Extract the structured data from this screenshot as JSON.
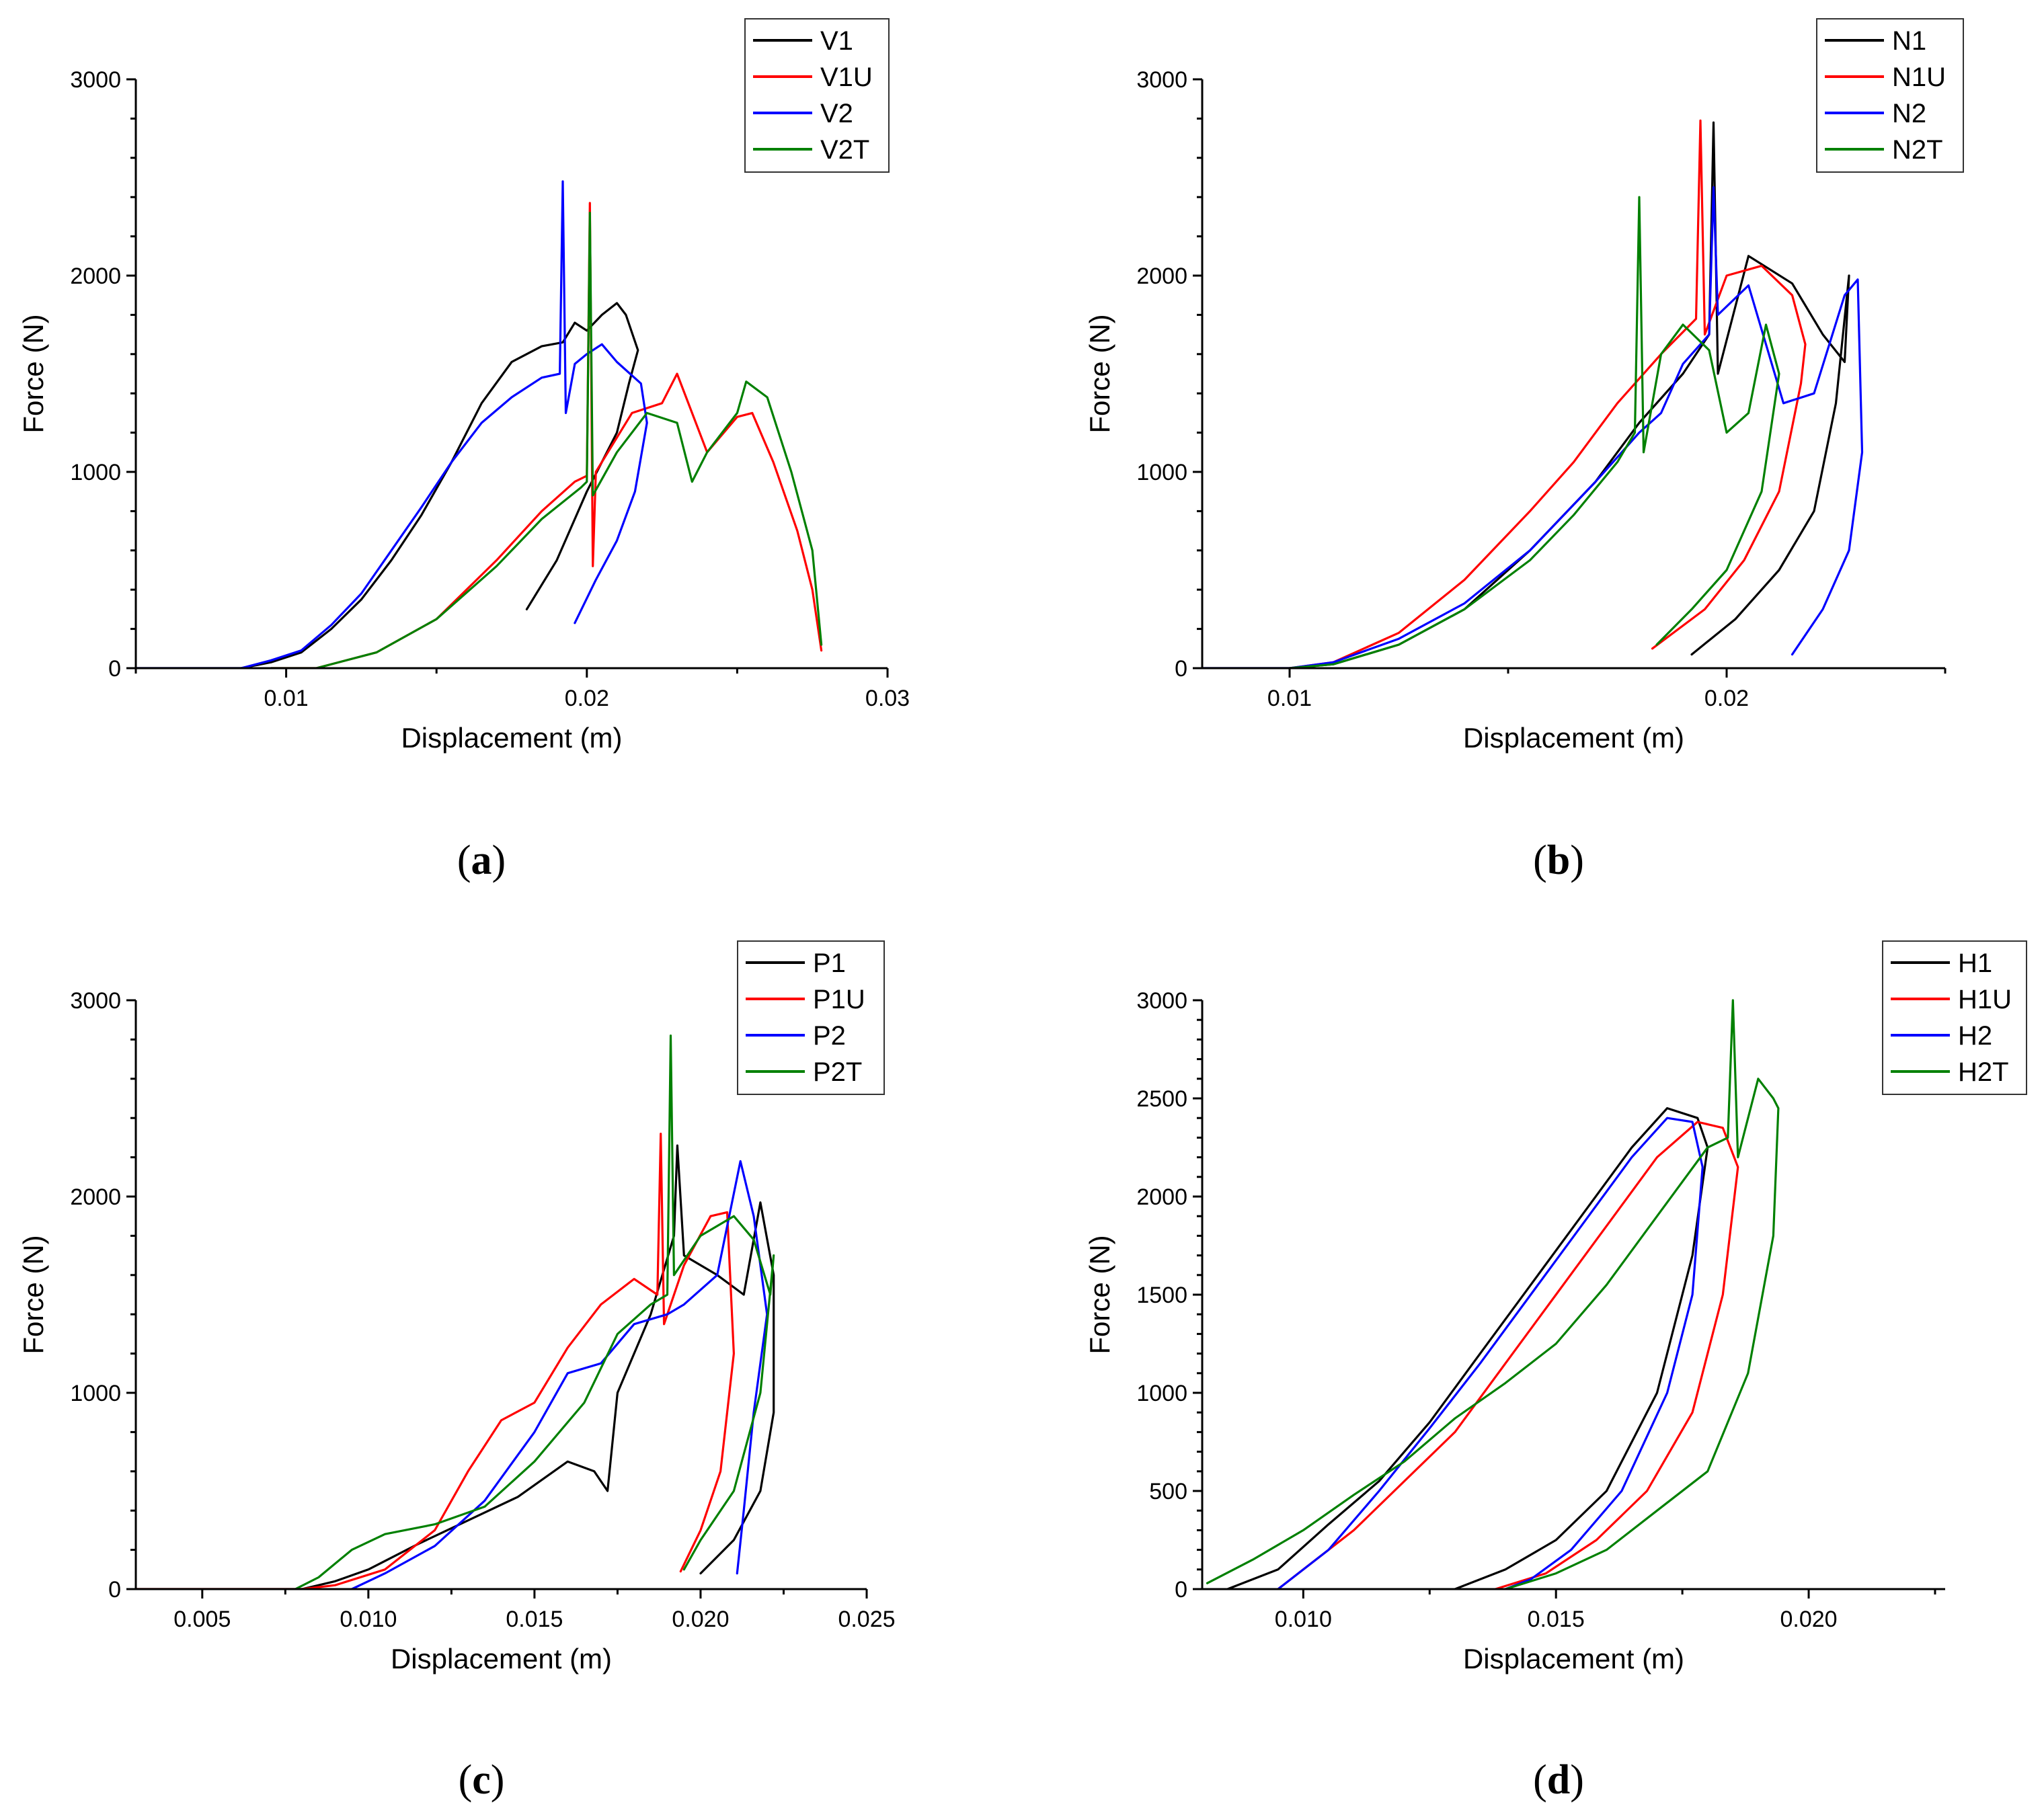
{
  "colors": {
    "black": "#000000",
    "red": "#ff0000",
    "blue": "#0000ff",
    "green": "#008000"
  },
  "chart_data": [
    {
      "type": "line",
      "panel_label": "a",
      "xlabel": "Displacement (m)",
      "ylabel": "Force (N)",
      "xlim": [
        0.005,
        0.03
      ],
      "ylim": [
        0,
        3000
      ],
      "x_ticks": [
        0.01,
        0.02,
        0.03
      ],
      "x_tick_labels": [
        "0.01",
        "0.02",
        "0.03"
      ],
      "y_ticks": [
        0,
        1000,
        2000,
        3000
      ],
      "y_tick_labels": [
        "0",
        "1000",
        "2000",
        "3000"
      ],
      "legend_position": "top-right",
      "series": [
        {
          "name": "V1",
          "color": "#000000",
          "x": [
            0.005,
            0.0085,
            0.0095,
            0.0105,
            0.0115,
            0.0125,
            0.0135,
            0.0145,
            0.0155,
            0.0165,
            0.0175,
            0.0185,
            0.0192,
            0.0196,
            0.02,
            0.0205,
            0.021,
            0.0213,
            0.0217,
            0.0214,
            0.021,
            0.02,
            0.019,
            0.018
          ],
          "y": [
            0,
            0,
            30,
            80,
            200,
            350,
            550,
            780,
            1050,
            1350,
            1560,
            1640,
            1660,
            1760,
            1720,
            1800,
            1860,
            1800,
            1620,
            1450,
            1200,
            900,
            550,
            300
          ]
        },
        {
          "name": "V1U",
          "color": "#ff0000",
          "x": [
            0.0095,
            0.011,
            0.013,
            0.015,
            0.017,
            0.0185,
            0.0196,
            0.02,
            0.0201,
            0.0202,
            0.0203,
            0.0215,
            0.0225,
            0.023,
            0.024,
            0.025,
            0.0255,
            0.0262,
            0.027,
            0.0275,
            0.0278
          ],
          "y": [
            0,
            0,
            80,
            250,
            550,
            800,
            950,
            980,
            2370,
            520,
            1000,
            1300,
            1350,
            1500,
            1100,
            1280,
            1300,
            1050,
            700,
            400,
            90
          ]
        },
        {
          "name": "V2",
          "color": "#0000ff",
          "x": [
            0.005,
            0.0085,
            0.0095,
            0.0105,
            0.0115,
            0.0125,
            0.0135,
            0.0145,
            0.0155,
            0.0165,
            0.0175,
            0.0185,
            0.0191,
            0.0192,
            0.0193,
            0.0196,
            0.02,
            0.0205,
            0.021,
            0.0218,
            0.022,
            0.0216,
            0.021,
            0.0203,
            0.0196
          ],
          "y": [
            0,
            0,
            40,
            90,
            220,
            380,
            600,
            820,
            1050,
            1250,
            1380,
            1480,
            1500,
            2480,
            1300,
            1550,
            1600,
            1650,
            1560,
            1450,
            1250,
            900,
            650,
            450,
            230
          ]
        },
        {
          "name": "V2T",
          "color": "#008000",
          "x": [
            0.0095,
            0.011,
            0.013,
            0.015,
            0.017,
            0.0185,
            0.0198,
            0.02,
            0.0201,
            0.0202,
            0.021,
            0.022,
            0.023,
            0.0235,
            0.024,
            0.025,
            0.0253,
            0.026,
            0.0268,
            0.0275,
            0.0278
          ],
          "y": [
            0,
            0,
            80,
            250,
            520,
            760,
            920,
            950,
            2320,
            880,
            1100,
            1300,
            1250,
            950,
            1100,
            1300,
            1460,
            1380,
            1000,
            600,
            120
          ]
        }
      ]
    },
    {
      "type": "line",
      "panel_label": "b",
      "xlabel": "Displacement (m)",
      "ylabel": "Force (N)",
      "xlim": [
        0.008,
        0.025
      ],
      "ylim": [
        0,
        3000
      ],
      "x_ticks": [
        0.01,
        0.02
      ],
      "x_tick_labels": [
        "0.01",
        "0.02"
      ],
      "y_ticks": [
        0,
        1000,
        2000,
        3000
      ],
      "y_tick_labels": [
        "0",
        "1000",
        "2000",
        "3000"
      ],
      "legend_position": "top-right",
      "series": [
        {
          "name": "N1",
          "color": "#000000",
          "x": [
            0.008,
            0.01,
            0.011,
            0.0125,
            0.014,
            0.0155,
            0.017,
            0.018,
            0.019,
            0.0196,
            0.0197,
            0.0198,
            0.0205,
            0.0215,
            0.0222,
            0.0227,
            0.0228,
            0.0225,
            0.022,
            0.0212,
            0.0202,
            0.0192
          ],
          "y": [
            0,
            0,
            20,
            120,
            300,
            600,
            950,
            1250,
            1500,
            1700,
            2780,
            1500,
            2100,
            1960,
            1700,
            1560,
            2000,
            1350,
            800,
            500,
            250,
            70
          ]
        },
        {
          "name": "N1U",
          "color": "#ff0000",
          "x": [
            0.01,
            0.011,
            0.0125,
            0.014,
            0.0155,
            0.0165,
            0.0175,
            0.0185,
            0.0193,
            0.0194,
            0.0195,
            0.02,
            0.0208,
            0.0215,
            0.0218,
            0.0217,
            0.0212,
            0.0204,
            0.0195,
            0.0183
          ],
          "y": [
            0,
            30,
            180,
            450,
            800,
            1050,
            1350,
            1600,
            1780,
            2790,
            1700,
            2000,
            2050,
            1900,
            1650,
            1450,
            900,
            550,
            300,
            100
          ]
        },
        {
          "name": "N2",
          "color": "#0000ff",
          "x": [
            0.008,
            0.01,
            0.011,
            0.0125,
            0.014,
            0.0155,
            0.017,
            0.018,
            0.0185,
            0.019,
            0.0196,
            0.0197,
            0.0198,
            0.0205,
            0.0213,
            0.022,
            0.0227,
            0.023,
            0.0231,
            0.0228,
            0.0222,
            0.0215
          ],
          "y": [
            0,
            0,
            30,
            150,
            330,
            600,
            950,
            1200,
            1300,
            1550,
            1700,
            2450,
            1800,
            1950,
            1350,
            1400,
            1900,
            1980,
            1100,
            600,
            300,
            70
          ]
        },
        {
          "name": "N2T",
          "color": "#008000",
          "x": [
            0.01,
            0.011,
            0.0125,
            0.014,
            0.0155,
            0.0165,
            0.0175,
            0.0179,
            0.018,
            0.0181,
            0.0185,
            0.019,
            0.0196,
            0.02,
            0.0205,
            0.0209,
            0.0212,
            0.0208,
            0.02,
            0.0192,
            0.0184
          ],
          "y": [
            0,
            20,
            120,
            300,
            550,
            780,
            1050,
            1200,
            2400,
            1100,
            1600,
            1750,
            1620,
            1200,
            1300,
            1750,
            1500,
            900,
            500,
            300,
            120
          ]
        }
      ]
    },
    {
      "type": "line",
      "panel_label": "c",
      "xlabel": "Displacement (m)",
      "ylabel": "Force (N)",
      "xlim": [
        0.003,
        0.025
      ],
      "ylim": [
        0,
        3000
      ],
      "x_ticks": [
        0.005,
        0.01,
        0.015,
        0.02,
        0.025
      ],
      "x_tick_labels": [
        "0.005",
        "0.010",
        "0.015",
        "0.020",
        "0.025"
      ],
      "y_ticks": [
        0,
        1000,
        2000,
        3000
      ],
      "y_tick_labels": [
        "0",
        "1000",
        "2000",
        "3000"
      ],
      "legend_position": "top-right",
      "series": [
        {
          "name": "P1",
          "color": "#000000",
          "x": [
            0.003,
            0.008,
            0.009,
            0.01,
            0.0115,
            0.013,
            0.0145,
            0.016,
            0.0168,
            0.0172,
            0.0175,
            0.0185,
            0.0192,
            0.0193,
            0.0195,
            0.0205,
            0.0213,
            0.0218,
            0.0222,
            0.0222,
            0.0218,
            0.021,
            0.02
          ],
          "y": [
            0,
            0,
            40,
            100,
            230,
            350,
            470,
            650,
            600,
            500,
            1000,
            1400,
            1800,
            2260,
            1700,
            1600,
            1500,
            1970,
            1600,
            900,
            500,
            250,
            80
          ]
        },
        {
          "name": "P1U",
          "color": "#ff0000",
          "x": [
            0.003,
            0.008,
            0.009,
            0.0105,
            0.012,
            0.013,
            0.014,
            0.015,
            0.016,
            0.017,
            0.018,
            0.0187,
            0.0188,
            0.0189,
            0.0195,
            0.0203,
            0.0208,
            0.021,
            0.0206,
            0.02,
            0.0194
          ],
          "y": [
            0,
            0,
            20,
            100,
            300,
            600,
            860,
            950,
            1230,
            1450,
            1580,
            1500,
            2320,
            1350,
            1650,
            1900,
            1920,
            1200,
            600,
            300,
            90
          ]
        },
        {
          "name": "P2",
          "color": "#0000ff",
          "x": [
            0.0095,
            0.0105,
            0.012,
            0.0135,
            0.015,
            0.016,
            0.017,
            0.018,
            0.019,
            0.0195,
            0.0205,
            0.0212,
            0.0216,
            0.022,
            0.0216,
            0.0213,
            0.0211
          ],
          "y": [
            0,
            80,
            220,
            450,
            800,
            1100,
            1150,
            1350,
            1400,
            1450,
            1600,
            2180,
            1900,
            1400,
            900,
            400,
            80
          ]
        },
        {
          "name": "P2T",
          "color": "#008000",
          "x": [
            0.0078,
            0.0085,
            0.0095,
            0.0105,
            0.012,
            0.0135,
            0.015,
            0.0165,
            0.0175,
            0.0185,
            0.019,
            0.0191,
            0.0192,
            0.02,
            0.021,
            0.0216,
            0.0221,
            0.0222,
            0.0218,
            0.021,
            0.02,
            0.0195
          ],
          "y": [
            0,
            60,
            200,
            280,
            330,
            420,
            650,
            950,
            1300,
            1450,
            1500,
            2820,
            1600,
            1800,
            1900,
            1780,
            1500,
            1700,
            1000,
            500,
            250,
            100
          ]
        }
      ]
    },
    {
      "type": "line",
      "panel_label": "d",
      "xlabel": "Displacement (m)",
      "ylabel": "Force (N)",
      "xlim": [
        0.008,
        0.0227
      ],
      "ylim": [
        0,
        3000
      ],
      "x_ticks": [
        0.01,
        0.015,
        0.02
      ],
      "x_tick_labels": [
        "0.010",
        "0.015",
        "0.020"
      ],
      "y_ticks": [
        0,
        500,
        1000,
        1500,
        2000,
        2500,
        3000
      ],
      "y_tick_labels": [
        "0",
        "500",
        "1000",
        "1500",
        "2000",
        "2500",
        "3000"
      ],
      "legend_position": "top-right",
      "series": [
        {
          "name": "H1",
          "color": "#000000",
          "x": [
            0.0085,
            0.0095,
            0.0105,
            0.0115,
            0.0125,
            0.0135,
            0.0145,
            0.0155,
            0.0165,
            0.0172,
            0.0178,
            0.018,
            0.0177,
            0.017,
            0.016,
            0.015,
            0.014,
            0.013
          ],
          "y": [
            0,
            100,
            330,
            550,
            850,
            1200,
            1550,
            1900,
            2250,
            2450,
            2400,
            2250,
            1700,
            1000,
            500,
            250,
            100,
            0
          ]
        },
        {
          "name": "H1U",
          "color": "#ff0000",
          "x": [
            0.0095,
            0.01,
            0.011,
            0.012,
            0.013,
            0.014,
            0.015,
            0.016,
            0.017,
            0.0178,
            0.0183,
            0.0186,
            0.0183,
            0.0177,
            0.0168,
            0.0158,
            0.0148,
            0.0138
          ],
          "y": [
            0,
            100,
            300,
            550,
            800,
            1150,
            1500,
            1850,
            2200,
            2380,
            2350,
            2150,
            1500,
            900,
            500,
            250,
            80,
            0
          ]
        },
        {
          "name": "H2",
          "color": "#0000ff",
          "x": [
            0.0095,
            0.0105,
            0.0115,
            0.0125,
            0.0135,
            0.0145,
            0.0155,
            0.0165,
            0.0172,
            0.0177,
            0.0179,
            0.0177,
            0.0172,
            0.0163,
            0.0153,
            0.0145,
            0.014
          ],
          "y": [
            0,
            200,
            500,
            820,
            1150,
            1500,
            1850,
            2200,
            2400,
            2380,
            2150,
            1500,
            1000,
            500,
            200,
            50,
            0
          ]
        },
        {
          "name": "H2T",
          "color": "#008000",
          "x": [
            0.0081,
            0.009,
            0.01,
            0.011,
            0.012,
            0.013,
            0.014,
            0.015,
            0.016,
            0.017,
            0.018,
            0.0184,
            0.0185,
            0.0186,
            0.019,
            0.0193,
            0.0194,
            0.0193,
            0.0188,
            0.018,
            0.017,
            0.016,
            0.015,
            0.014
          ],
          "y": [
            30,
            150,
            300,
            480,
            650,
            870,
            1050,
            1250,
            1550,
            1900,
            2250,
            2300,
            3000,
            2200,
            2600,
            2500,
            2450,
            1800,
            1100,
            600,
            400,
            200,
            80,
            0
          ]
        }
      ]
    }
  ]
}
